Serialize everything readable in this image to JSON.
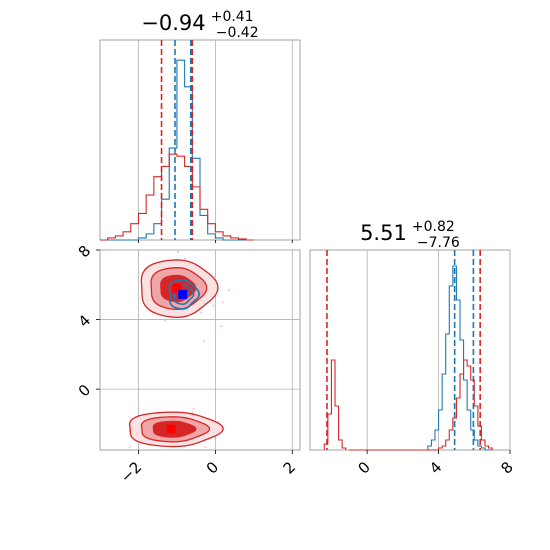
{
  "chart_data": [
    {
      "type": "histogram",
      "panel": "top-left",
      "title": {
        "value": "−0.94",
        "plus": "+0.41",
        "minus": "−0.42"
      },
      "xlim": [
        -3,
        2.2
      ],
      "x_ticks": [
        -2,
        0,
        2
      ],
      "bins": [
        -3.0,
        -2.8,
        -2.6,
        -2.4,
        -2.2,
        -2.0,
        -1.8,
        -1.6,
        -1.4,
        -1.2,
        -1.0,
        -0.8,
        -0.6,
        -0.4,
        -0.2,
        0.0,
        0.2,
        0.4,
        0.6,
        0.8,
        1.0
      ],
      "series": [
        {
          "color": "#1f77b4",
          "values": [
            0,
            0,
            0,
            0,
            0,
            0.01,
            0.03,
            0.08,
            0.2,
            0.45,
            0.88,
            0.75,
            0.4,
            0.12,
            0.03,
            0.01,
            0,
            0,
            0,
            0
          ]
        },
        {
          "color": "#d62728",
          "values": [
            0,
            0.01,
            0.02,
            0.04,
            0.08,
            0.13,
            0.22,
            0.31,
            0.36,
            0.42,
            0.41,
            0.36,
            0.26,
            0.15,
            0.08,
            0.04,
            0.02,
            0.01,
            0.005,
            0
          ]
        }
      ],
      "quantile_lines": [
        {
          "color": "#1f77b4",
          "x": [
            -1.05,
            -0.64
          ]
        },
        {
          "color": "#d62728",
          "x": [
            -1.4,
            -0.6
          ]
        }
      ]
    },
    {
      "type": "histogram",
      "panel": "bottom-right",
      "title": {
        "value": "5.51",
        "plus": "+0.82",
        "minus": "−7.76"
      },
      "xlim": [
        -3.2,
        8
      ],
      "x_ticks": [
        0,
        4,
        8
      ],
      "bins": [
        -2.4,
        -2.2,
        -2.0,
        -1.8,
        -1.6,
        -1.4,
        -1.2,
        -1.0,
        3.4,
        3.6,
        3.8,
        4.0,
        4.2,
        4.4,
        4.6,
        4.8,
        5.0,
        5.2,
        5.4,
        5.6,
        5.8,
        6.0,
        6.2,
        6.4,
        6.6,
        6.8,
        7.0,
        7.2
      ],
      "series": [
        {
          "color": "#1f77b4",
          "values": [
            0,
            0,
            0,
            0,
            0,
            0,
            0,
            0,
            0.02,
            0.05,
            0.1,
            0.2,
            0.38,
            0.58,
            0.82,
            0.92,
            0.75,
            0.55,
            0.35,
            0.2,
            0.1,
            0.05,
            0.02,
            0.01,
            0,
            0
          ]
        },
        {
          "color": "#d62728",
          "values": [
            0.03,
            0.18,
            0.45,
            0.22,
            0.05,
            0.01,
            0,
            0,
            0,
            0,
            0,
            0.01,
            0.02,
            0.05,
            0.1,
            0.16,
            0.26,
            0.38,
            0.45,
            0.42,
            0.35,
            0.22,
            0.12,
            0.05,
            0.02,
            0.01
          ]
        }
      ],
      "quantile_lines": [
        {
          "color": "#1f77b4",
          "x": [
            4.9,
            5.95
          ]
        },
        {
          "color": "#d62728",
          "x": [
            -2.25,
            6.33
          ]
        }
      ]
    },
    {
      "type": "contour",
      "panel": "bottom-left",
      "xlim": [
        -3,
        2.2
      ],
      "ylim": [
        -3.5,
        8
      ],
      "x_ticks": [
        -2,
        0,
        2
      ],
      "y_ticks": [
        0,
        4,
        8
      ],
      "red_modes": [
        {
          "center": [
            -1.0,
            5.8
          ],
          "sx": 0.45,
          "sy": 0.75,
          "levels": [
            1.0,
            1.6,
            2.2
          ]
        },
        {
          "center": [
            -1.1,
            -2.3
          ],
          "sx": 0.55,
          "sy": 0.45,
          "levels": [
            1.0,
            1.6,
            2.2
          ]
        }
      ],
      "blue_mode": {
        "center": [
          -0.85,
          5.45
        ],
        "sx": 0.25,
        "sy": 0.55,
        "levels": [
          0.5,
          1.0,
          1.5
        ]
      },
      "markers": [
        {
          "color": "#ff0000",
          "x": -1.0,
          "y": 5.8
        },
        {
          "color": "#ff0000",
          "x": -1.15,
          "y": -2.3
        },
        {
          "color": "#0000ff",
          "x": -0.85,
          "y": 5.45
        }
      ]
    }
  ],
  "colors": {
    "blue": "#1f77b4",
    "red": "#d62728",
    "red_fill_dark": "#d62728",
    "red_fill_light": "#f0a5a6"
  }
}
